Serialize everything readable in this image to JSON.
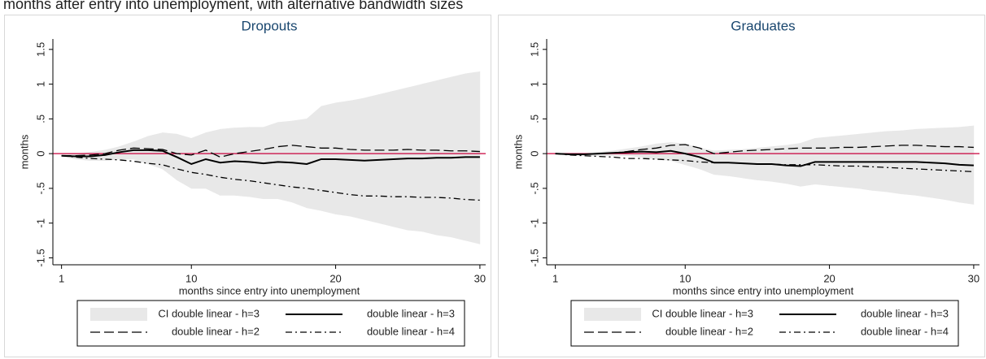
{
  "title": "months after entry into unemployment, with alternative bandwidth sizes",
  "chart_data": [
    {
      "type": "line",
      "title": "Dropouts",
      "x_label": "months since entry into unemployment",
      "y_label": "months",
      "x": [
        1,
        2,
        3,
        4,
        5,
        6,
        7,
        8,
        9,
        10,
        11,
        12,
        13,
        14,
        15,
        16,
        17,
        18,
        19,
        20,
        21,
        22,
        23,
        24,
        25,
        26,
        27,
        28,
        29,
        30
      ],
      "xlim": [
        0.4,
        30.4
      ],
      "xticks": [
        1,
        10,
        20,
        30
      ],
      "ylim": [
        -1.6,
        1.65
      ],
      "yticks": [
        -1.5,
        -1,
        {
          "value": -0.5,
          "label": "-.5"
        },
        0,
        {
          "value": 0.5,
          "label": ".5"
        },
        1,
        1.5
      ],
      "reference_line": 0,
      "reference_color": "#c8003c",
      "series": [
        {
          "name": "CI double linear - h=3",
          "style": "band",
          "color": "#e8e8e8",
          "upper": [
            -0.02,
            0,
            0.02,
            0.05,
            0.1,
            0.17,
            0.25,
            0.3,
            0.28,
            0.22,
            0.3,
            0.35,
            0.37,
            0.38,
            0.38,
            0.45,
            0.47,
            0.5,
            0.68,
            0.73,
            0.76,
            0.8,
            0.85,
            0.9,
            0.95,
            1.0,
            1.05,
            1.1,
            1.15,
            1.18
          ],
          "lower": [
            -0.04,
            -0.08,
            -0.1,
            -0.1,
            -0.08,
            -0.08,
            -0.15,
            -0.22,
            -0.38,
            -0.5,
            -0.5,
            -0.6,
            -0.6,
            -0.62,
            -0.65,
            -0.65,
            -0.7,
            -0.78,
            -0.82,
            -0.87,
            -0.9,
            -0.95,
            -1.0,
            -1.05,
            -1.1,
            -1.12,
            -1.17,
            -1.2,
            -1.25,
            -1.3
          ]
        },
        {
          "name": "double linear - h=3",
          "style": "solid",
          "color": "#000000",
          "values": [
            -0.03,
            -0.04,
            -0.04,
            -0.02,
            0.02,
            0.05,
            0.05,
            0.04,
            -0.05,
            -0.15,
            -0.08,
            -0.13,
            -0.11,
            -0.12,
            -0.14,
            -0.12,
            -0.13,
            -0.15,
            -0.08,
            -0.08,
            -0.09,
            -0.1,
            -0.09,
            -0.08,
            -0.07,
            -0.07,
            -0.06,
            -0.06,
            -0.05,
            -0.05
          ]
        },
        {
          "name": "double linear - h=2",
          "style": "dash",
          "color": "#000000",
          "values": [
            -0.03,
            -0.03,
            -0.02,
            0,
            0.05,
            0.08,
            0.07,
            0.06,
            0,
            -0.02,
            0.05,
            -0.05,
            0,
            0.03,
            0.06,
            0.1,
            0.12,
            0.1,
            0.08,
            0.08,
            0.06,
            0.05,
            0.05,
            0.05,
            0.06,
            0.05,
            0.05,
            0.04,
            0.04,
            0.03
          ]
        },
        {
          "name": "double linear - h=4",
          "style": "dashdot",
          "color": "#000000",
          "values": [
            -0.03,
            -0.05,
            -0.07,
            -0.08,
            -0.09,
            -0.11,
            -0.14,
            -0.16,
            -0.22,
            -0.27,
            -0.3,
            -0.34,
            -0.37,
            -0.39,
            -0.42,
            -0.45,
            -0.48,
            -0.5,
            -0.53,
            -0.56,
            -0.59,
            -0.61,
            -0.61,
            -0.62,
            -0.62,
            -0.63,
            -0.63,
            -0.64,
            -0.66,
            -0.67
          ]
        }
      ]
    },
    {
      "type": "line",
      "title": "Graduates",
      "x_label": "months since entry into unemployment",
      "y_label": "months",
      "x": [
        1,
        2,
        3,
        4,
        5,
        6,
        7,
        8,
        9,
        10,
        11,
        12,
        13,
        14,
        15,
        16,
        17,
        18,
        19,
        20,
        21,
        22,
        23,
        24,
        25,
        26,
        27,
        28,
        29,
        30
      ],
      "xlim": [
        0.4,
        30.4
      ],
      "xticks": [
        1,
        10,
        20,
        30
      ],
      "ylim": [
        -1.6,
        1.65
      ],
      "yticks": [
        -1.5,
        -1,
        {
          "value": -0.5,
          "label": "-.5"
        },
        0,
        {
          "value": 0.5,
          "label": ".5"
        },
        1,
        1.5
      ],
      "reference_line": 0,
      "reference_color": "#c8003c",
      "series": [
        {
          "name": "CI double linear - h=3",
          "style": "band",
          "color": "#e8e8e8",
          "upper": [
            0,
            0,
            0,
            0.02,
            0.04,
            0.07,
            0.1,
            0.14,
            0.16,
            0.14,
            0.08,
            0.04,
            0.05,
            0.06,
            0.08,
            0.1,
            0.12,
            0.15,
            0.22,
            0.24,
            0.26,
            0.28,
            0.3,
            0.32,
            0.33,
            0.35,
            0.36,
            0.37,
            0.38,
            0.4
          ],
          "lower": [
            -0.01,
            -0.02,
            -0.03,
            -0.03,
            -0.03,
            -0.03,
            -0.05,
            -0.08,
            -0.1,
            -0.16,
            -0.22,
            -0.3,
            -0.32,
            -0.35,
            -0.38,
            -0.4,
            -0.43,
            -0.47,
            -0.44,
            -0.46,
            -0.48,
            -0.5,
            -0.53,
            -0.55,
            -0.58,
            -0.6,
            -0.63,
            -0.66,
            -0.7,
            -0.73
          ]
        },
        {
          "name": "double linear - h=3",
          "style": "solid",
          "color": "#000000",
          "values": [
            0,
            -0.01,
            -0.01,
            0,
            0.01,
            0.02,
            0.03,
            0.02,
            0.04,
            0,
            -0.05,
            -0.13,
            -0.13,
            -0.14,
            -0.15,
            -0.15,
            -0.17,
            -0.18,
            -0.12,
            -0.12,
            -0.12,
            -0.12,
            -0.12,
            -0.12,
            -0.12,
            -0.12,
            -0.13,
            -0.14,
            -0.16,
            -0.17
          ]
        },
        {
          "name": "double linear - h=2",
          "style": "dash",
          "color": "#000000",
          "values": [
            0,
            -0.01,
            -0.01,
            0,
            0.01,
            0.03,
            0.06,
            0.08,
            0.12,
            0.13,
            0.08,
            0,
            0.02,
            0.04,
            0.05,
            0.06,
            0.07,
            0.08,
            0.08,
            0.08,
            0.09,
            0.09,
            0.1,
            0.11,
            0.12,
            0.12,
            0.11,
            0.1,
            0.1,
            0.09
          ]
        },
        {
          "name": "double linear - h=4",
          "style": "dashdot",
          "color": "#000000",
          "values": [
            0,
            -0.02,
            -0.03,
            -0.04,
            -0.05,
            -0.07,
            -0.07,
            -0.08,
            -0.09,
            -0.1,
            -0.12,
            -0.13,
            -0.13,
            -0.14,
            -0.15,
            -0.15,
            -0.16,
            -0.16,
            -0.16,
            -0.17,
            -0.18,
            -0.18,
            -0.19,
            -0.2,
            -0.21,
            -0.22,
            -0.23,
            -0.24,
            -0.25,
            -0.26
          ]
        }
      ]
    }
  ]
}
